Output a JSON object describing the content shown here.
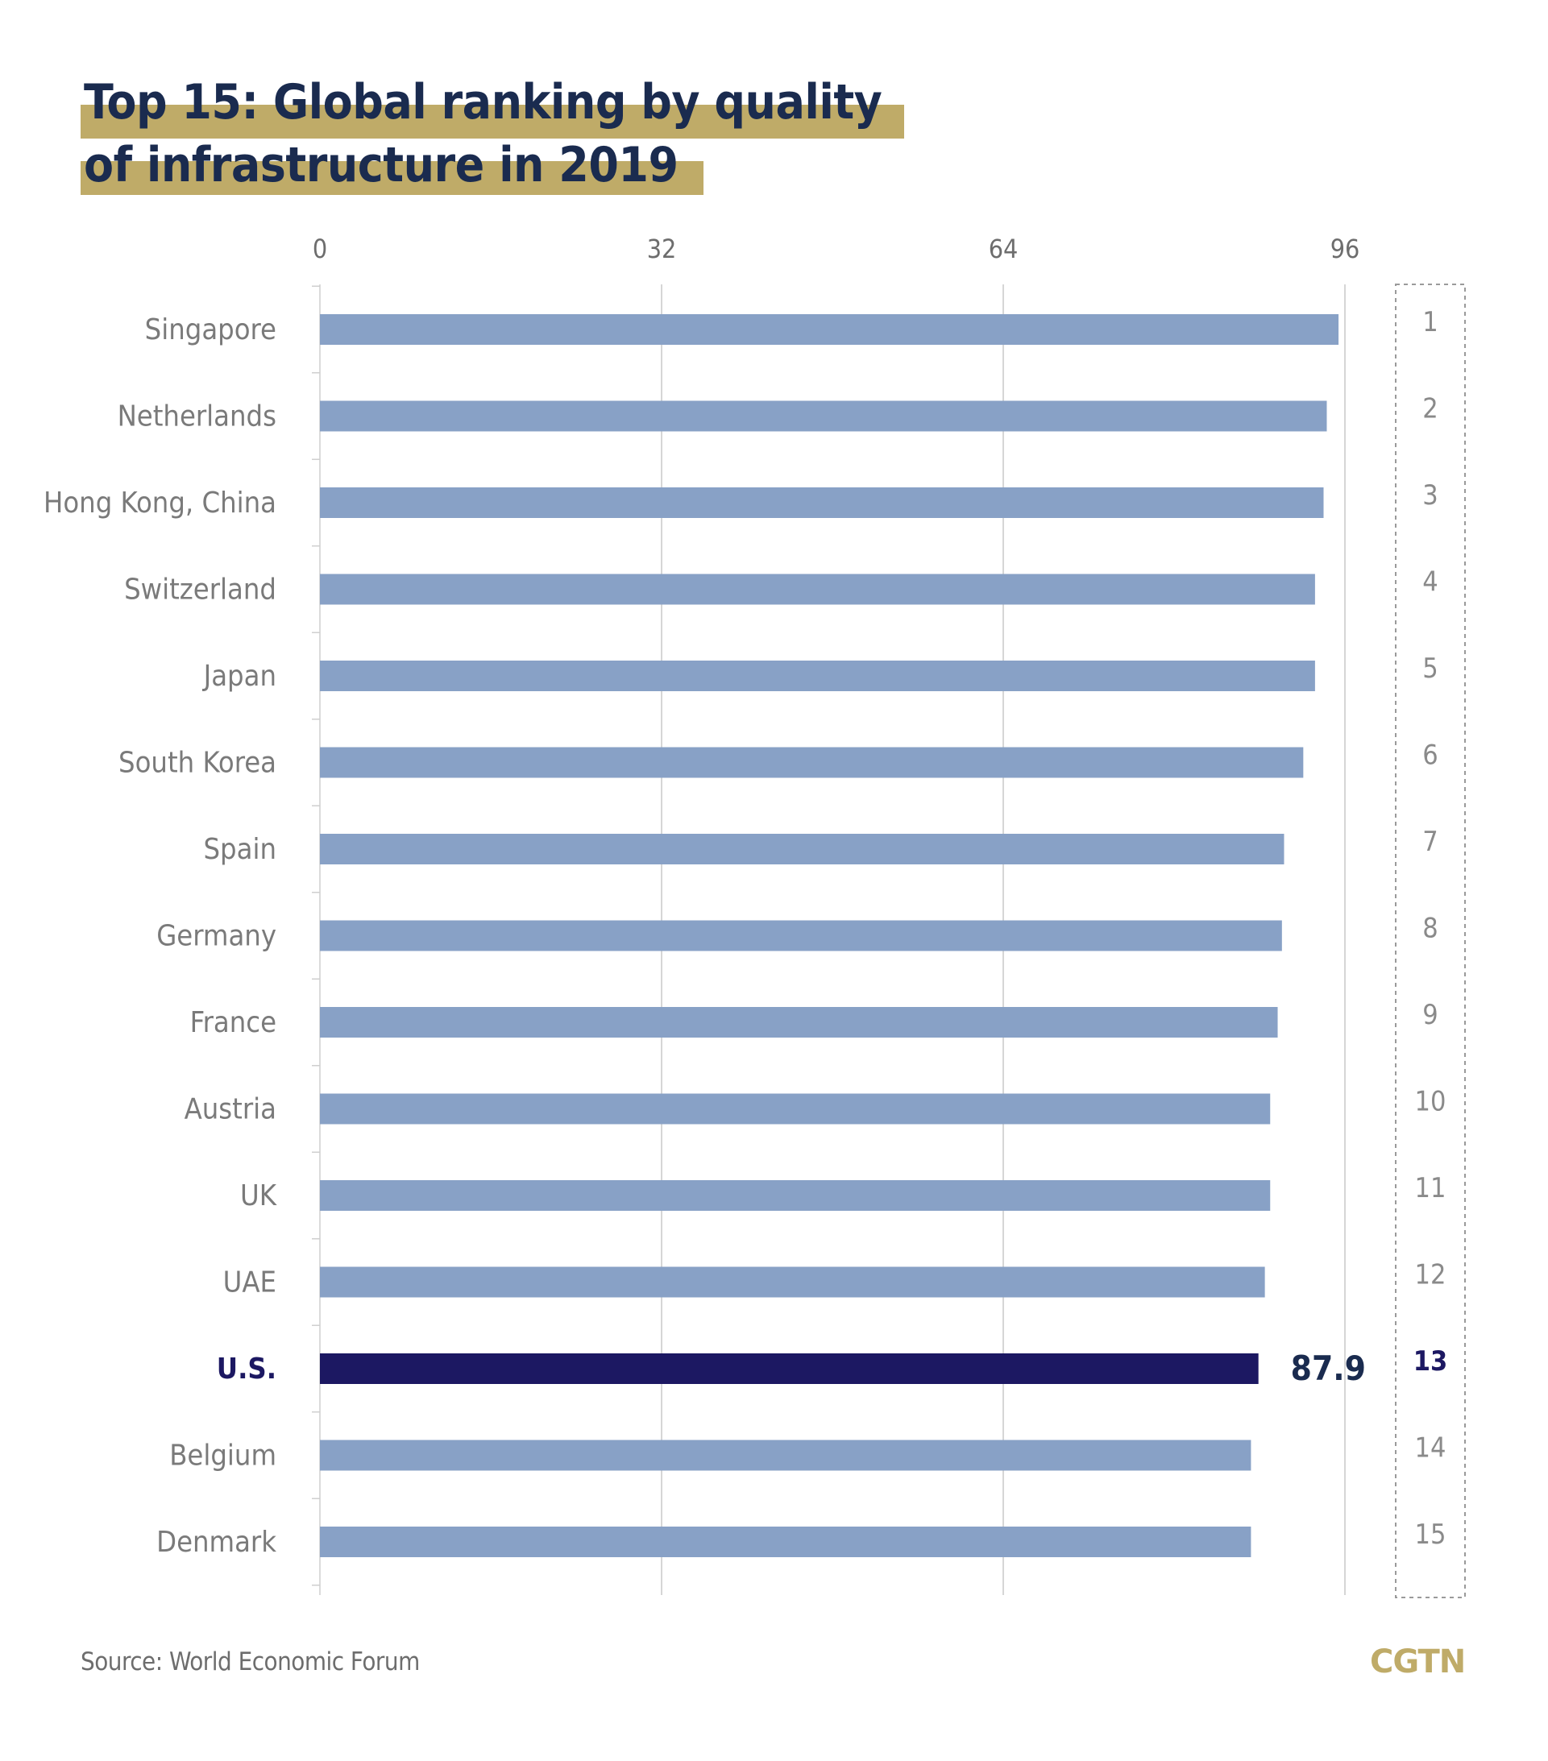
{
  "title": {
    "line1": "Top 15: Global ranking by quality",
    "line2": "of infrastructure in 2019"
  },
  "source": "Source: World Economic Forum",
  "logo": "CGTN",
  "colors": {
    "bar": "#88a1c6",
    "highlight_bar": "#1c1862",
    "highlight_text": "#1c1862",
    "title": "#1a2b4f",
    "title_highlight": "#bfab68",
    "label": "#7a7a7a",
    "grid": "#c9c9c9"
  },
  "chart_data": {
    "type": "bar",
    "orientation": "horizontal",
    "xlim": [
      0,
      96
    ],
    "x_ticks": [
      "0",
      "32",
      "64",
      "96"
    ],
    "grid": true,
    "categories": [
      "Singapore",
      "Netherlands",
      "Hong Kong, China",
      "Switzerland",
      "Japan",
      "South Korea",
      "Spain",
      "Germany",
      "France",
      "Austria",
      "UK",
      "UAE",
      "U.S.",
      "Belgium",
      "Denmark"
    ],
    "values": [
      95.4,
      94.3,
      94.0,
      93.2,
      93.2,
      92.1,
      90.3,
      90.1,
      89.7,
      89.0,
      89.0,
      88.5,
      87.9,
      87.2,
      87.2
    ],
    "ranks": [
      "1",
      "2",
      "3",
      "4",
      "5",
      "6",
      "7",
      "8",
      "9",
      "10",
      "11",
      "12",
      "13",
      "14",
      "15"
    ],
    "highlight": {
      "category": "U.S.",
      "value_label": "87.9"
    }
  }
}
